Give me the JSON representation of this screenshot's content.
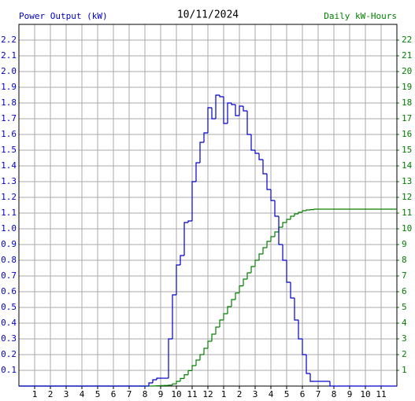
{
  "chart_data": {
    "type": "step-line",
    "title": "10/11/2024",
    "ylabel": "Power Output (kW)",
    "y2label": "Daily kW-Hours",
    "xlim": [
      0,
      24
    ],
    "xticks": [
      1,
      2,
      3,
      4,
      5,
      6,
      7,
      8,
      9,
      10,
      11,
      12,
      {
        "value": 13,
        "label": "1"
      },
      {
        "value": 14,
        "label": "2"
      },
      {
        "value": 15,
        "label": "3"
      },
      {
        "value": 16,
        "label": "4"
      },
      {
        "value": 17,
        "label": "5"
      },
      {
        "value": 18,
        "label": "6"
      },
      {
        "value": 19,
        "label": "7"
      },
      {
        "value": 20,
        "label": "8"
      },
      {
        "value": 21,
        "label": "9"
      },
      {
        "value": 22,
        "label": "10"
      },
      {
        "value": 23,
        "label": "11"
      }
    ],
    "ylim": [
      0,
      2.3
    ],
    "yticks": [
      0.1,
      0.2,
      0.3,
      0.4,
      0.5,
      0.6,
      0.7,
      0.8,
      0.9,
      {
        "value": 1,
        "label": "1.0"
      },
      1.1,
      1.2,
      1.3,
      1.4,
      1.5,
      1.6,
      1.7,
      1.8,
      1.9,
      {
        "value": 2,
        "label": "2.0"
      },
      2.1,
      2.2
    ],
    "y2lim": [
      0,
      23
    ],
    "y2ticks": [
      1,
      2,
      3,
      4,
      5,
      6,
      7,
      8,
      9,
      10,
      11,
      12,
      13,
      14,
      15,
      16,
      17,
      18,
      19,
      20,
      21,
      22
    ],
    "grid": true,
    "x": [
      0,
      8,
      8.25,
      8.5,
      8.75,
      9,
      9.25,
      9.5,
      9.75,
      10,
      10.25,
      10.5,
      10.75,
      11,
      11.25,
      11.5,
      11.75,
      12,
      12.25,
      12.5,
      12.75,
      13,
      13.25,
      13.5,
      13.75,
      14,
      14.25,
      14.5,
      14.75,
      15,
      15.25,
      15.5,
      15.75,
      16,
      16.25,
      16.5,
      16.75,
      17,
      17.25,
      17.5,
      17.75,
      18,
      18.25,
      18.5,
      18.75,
      19,
      19.25,
      19.5,
      19.75,
      20,
      24
    ],
    "series": [
      {
        "name": "Power Output (kW)",
        "color": "#0000cc",
        "axis": "y",
        "values": [
          0,
          0,
          0.02,
          0.04,
          0.05,
          0.05,
          0.05,
          0.3,
          0.58,
          0.77,
          0.83,
          1.04,
          1.05,
          1.3,
          1.42,
          1.55,
          1.61,
          1.77,
          1.7,
          1.85,
          1.84,
          1.67,
          1.8,
          1.79,
          1.72,
          1.78,
          1.75,
          1.6,
          1.5,
          1.48,
          1.44,
          1.35,
          1.25,
          1.18,
          1.08,
          0.9,
          0.8,
          0.66,
          0.56,
          0.42,
          0.3,
          0.2,
          0.08,
          0.03,
          0.03,
          0.03,
          0.03,
          0.03,
          0,
          0,
          0
        ]
      },
      {
        "name": "Daily kW-Hours",
        "color": "#008000",
        "axis": "y2",
        "values": [
          0,
          0,
          0,
          0.01,
          0.02,
          0.03,
          0.04,
          0.06,
          0.14,
          0.3,
          0.48,
          0.72,
          0.98,
          1.3,
          1.65,
          2.0,
          2.4,
          2.85,
          3.3,
          3.75,
          4.2,
          4.6,
          5.05,
          5.5,
          5.92,
          6.37,
          6.8,
          7.2,
          7.6,
          8.0,
          8.4,
          8.8,
          9.2,
          9.5,
          9.8,
          10.1,
          10.4,
          10.6,
          10.8,
          10.95,
          11.05,
          11.15,
          11.2,
          11.22,
          11.25,
          11.25,
          11.25,
          11.25,
          11.25,
          11.25,
          11.25
        ]
      }
    ]
  }
}
